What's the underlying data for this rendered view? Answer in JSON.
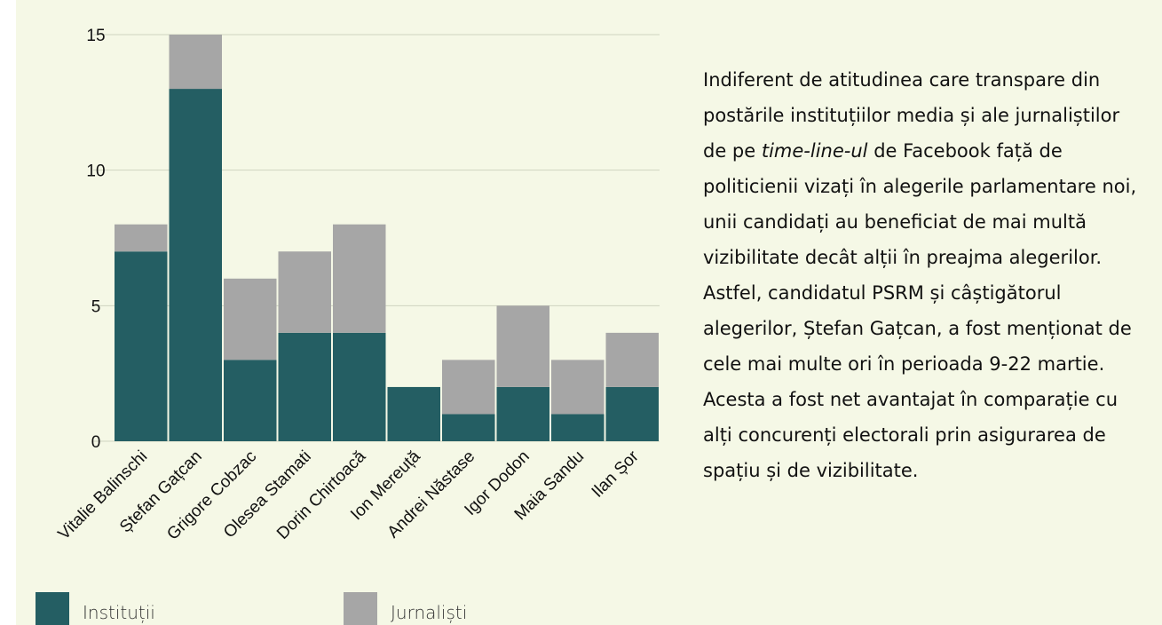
{
  "chart_data": {
    "type": "stacked_bar",
    "categories": [
      "Vitalie Balinschi",
      "Ștefan Gațcan",
      "Grigore Cobzac",
      "Olesea Stamati",
      "Dorin Chirtoacă",
      "Ion Mereuță",
      "Andrei Năstase",
      "Igor Dodon",
      "Maia Sandu",
      "Ilan Șor"
    ],
    "series": [
      {
        "name": "Instituții",
        "color": "#245e63",
        "values": [
          7,
          13,
          3,
          4,
          4,
          2,
          1,
          2,
          1,
          2
        ]
      },
      {
        "name": "Jurnaliști",
        "color": "#a6a6a6",
        "values": [
          1,
          2,
          3,
          3,
          4,
          0,
          2,
          3,
          2,
          2
        ]
      }
    ],
    "ylim": [
      0,
      15
    ],
    "yticks": [
      0,
      5,
      10,
      15
    ],
    "grid": true,
    "legend": "bottom"
  },
  "paragraph": [
    "Indiferent de atitudinea care transpare din postările instituțiilor media și ale jurnaliștilor de pe ",
    "time-line-ul",
    " de Facebook față de politicienii vizați în alegerile parlamentare noi, unii candidați au beneficiat de mai multă vizibilitate decât alții în preajma alegerilor. Astfel, candidatul PSRM și câștigătorul alegerilor, Ștefan Gațcan, a fost menționat de cele mai multe ori în perioada 9-22 martie. Acesta a fost net avantajat în comparație cu alți concurenți electorali prin asigurarea de spațiu și de vizibilitate."
  ]
}
